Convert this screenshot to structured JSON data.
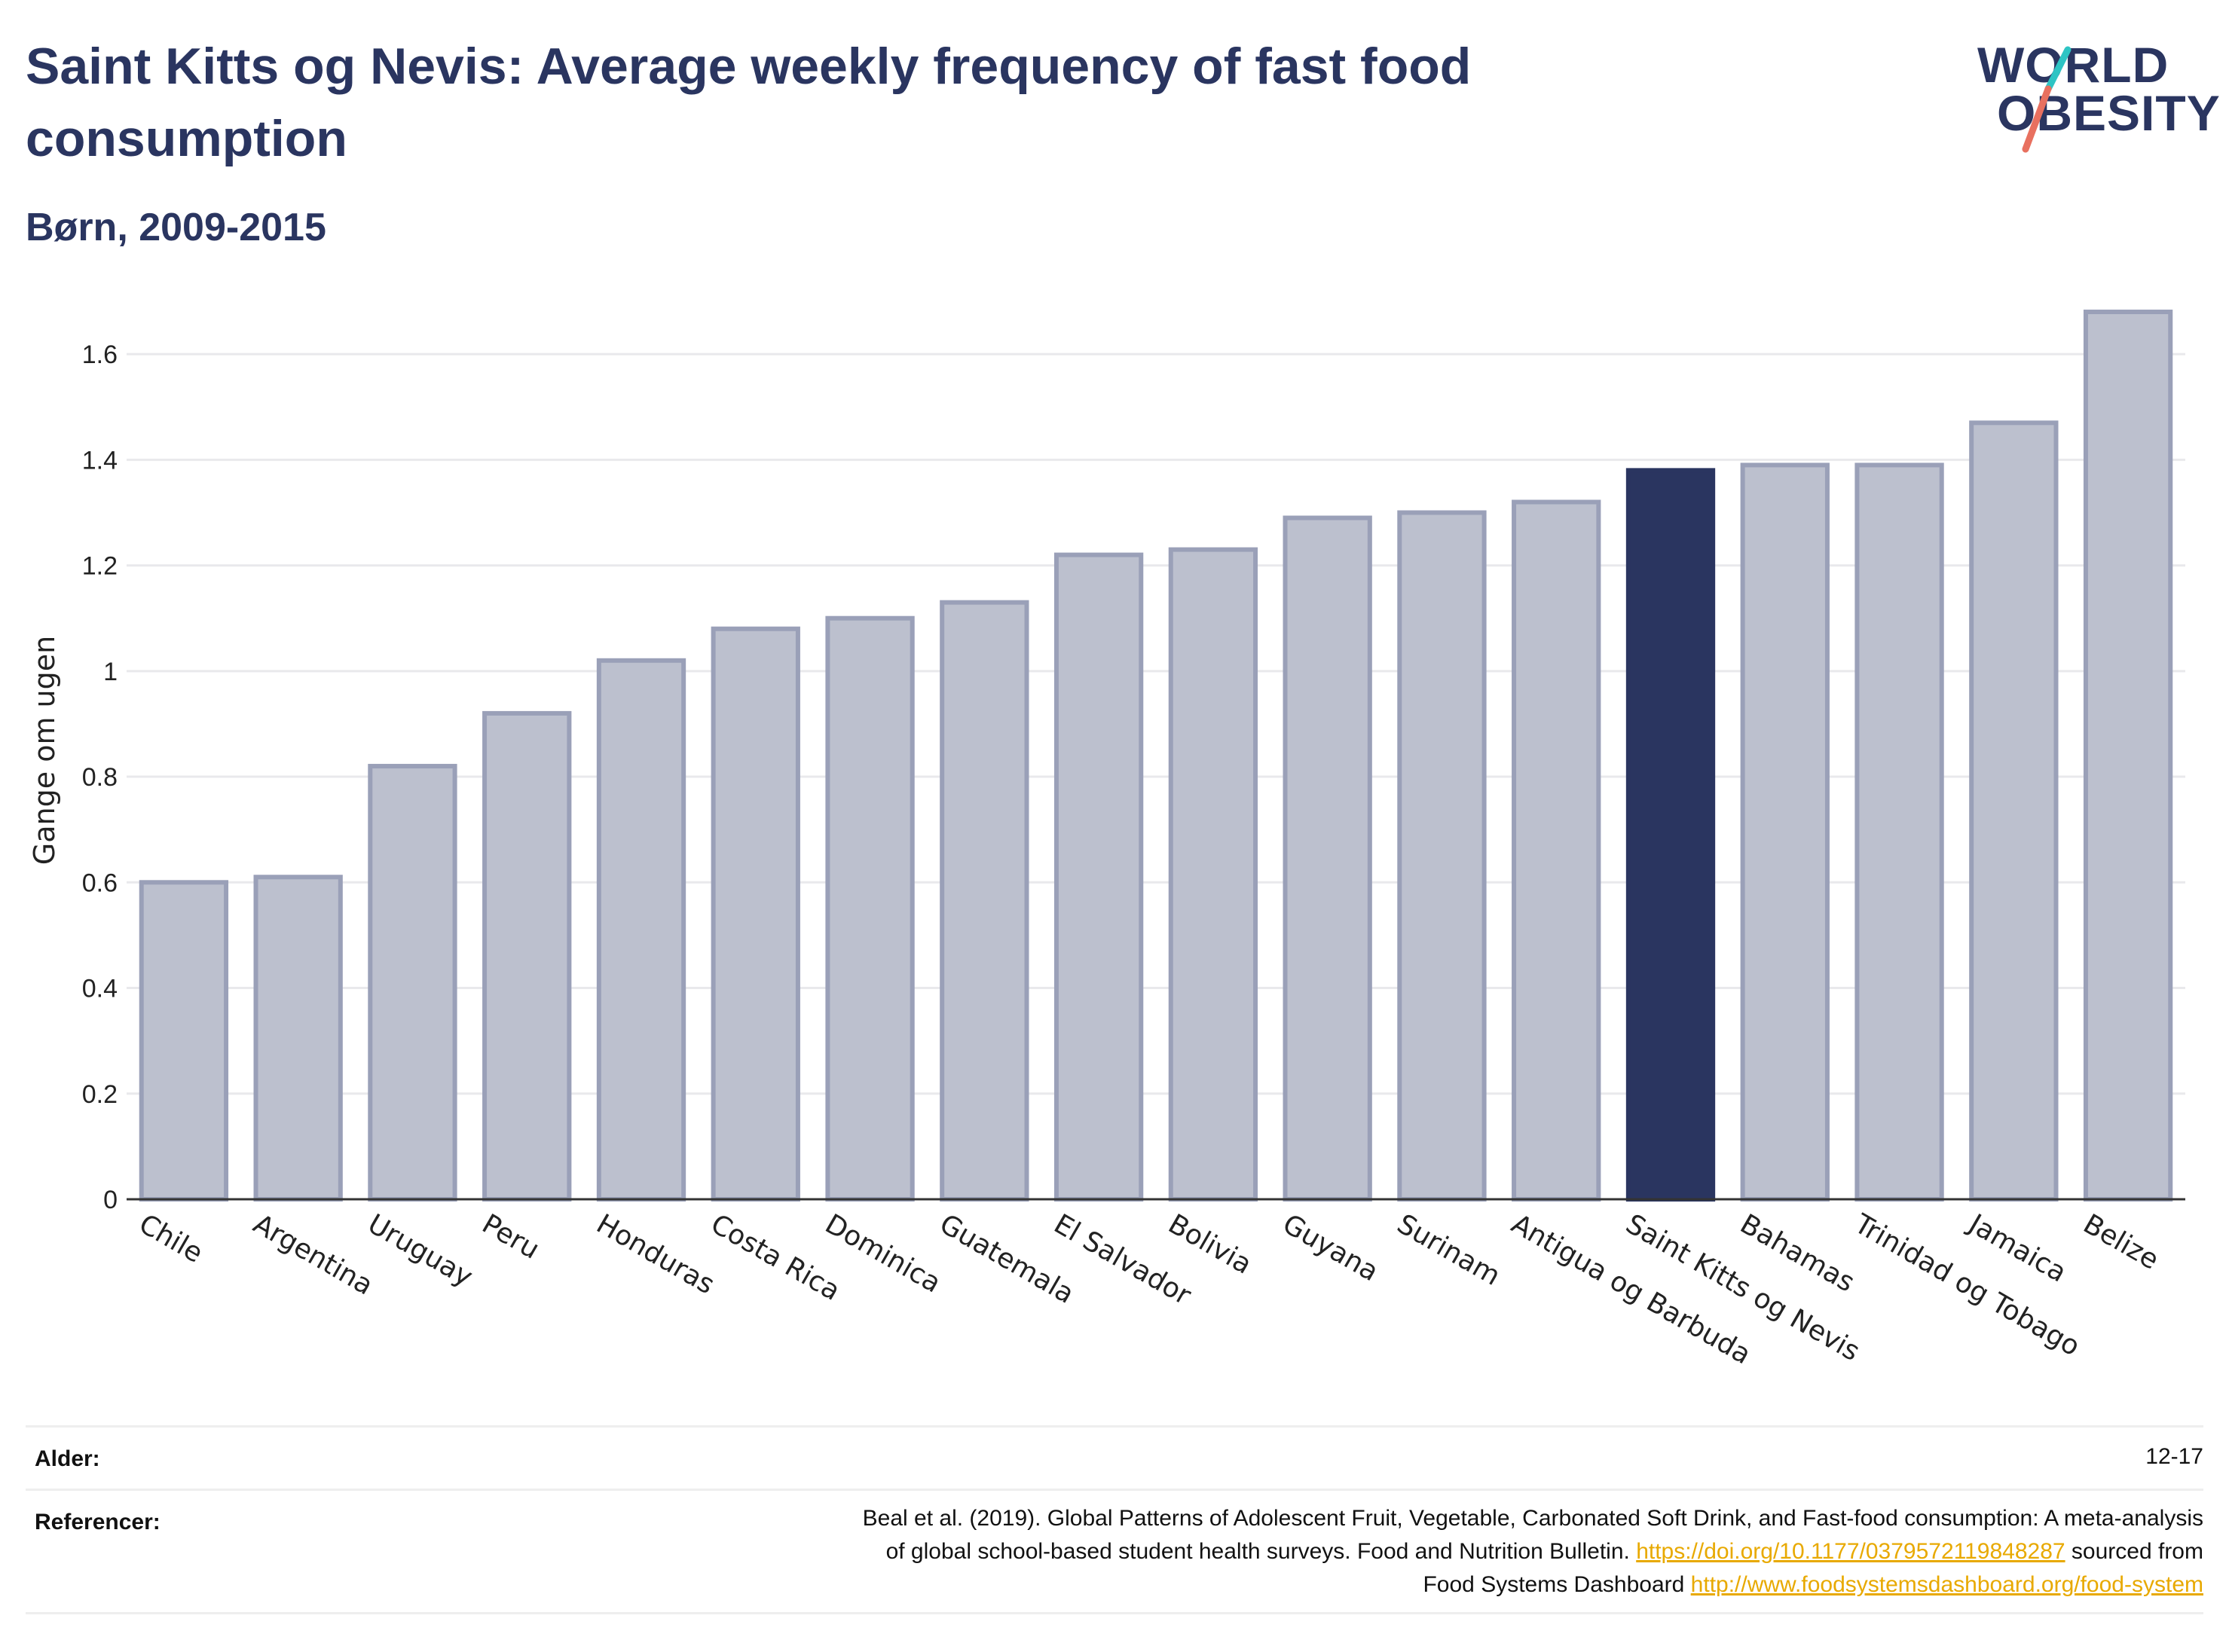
{
  "header": {
    "title": "Saint Kitts og Nevis: Average weekly frequency of fast food consumption",
    "subtitle": "Børn, 2009-2015"
  },
  "logo": {
    "line1": "WORLD",
    "line2": "OBESITY",
    "accent_colors": [
      "#2ec4c4",
      "#e8705f"
    ]
  },
  "chart_data": {
    "type": "bar",
    "title": "Saint Kitts og Nevis: Average weekly frequency of fast food consumption",
    "subtitle": "Børn, 2009-2015",
    "ylabel": "Gange om ugen",
    "xlabel": "",
    "ylim": [
      0,
      1.7
    ],
    "yticks": [
      0,
      0.2,
      0.4,
      0.6,
      0.8,
      1,
      1.2,
      1.4,
      1.6
    ],
    "ytick_labels": [
      "0",
      "0.2",
      "0.4",
      "0.6",
      "0.8",
      "1",
      "1.2",
      "1.4",
      "1.6"
    ],
    "grid": true,
    "highlight": "Saint Kitts og Nevis",
    "colors": {
      "bar": "#bcc0ce",
      "bar_border": "#9aa0b8",
      "highlight": "#2a3560"
    },
    "categories": [
      "Chile",
      "Argentina",
      "Uruguay",
      "Peru",
      "Honduras",
      "Costa Rica",
      "Dominica",
      "Guatemala",
      "El Salvador",
      "Bolivia",
      "Guyana",
      "Surinam",
      "Antigua og Barbuda",
      "Saint Kitts og Nevis",
      "Bahamas",
      "Trinidad og Tobago",
      "Jamaica",
      "Belize"
    ],
    "values": [
      0.6,
      0.61,
      0.82,
      0.92,
      1.02,
      1.08,
      1.1,
      1.13,
      1.22,
      1.23,
      1.29,
      1.3,
      1.32,
      1.38,
      1.39,
      1.39,
      1.47,
      1.68
    ]
  },
  "meta": {
    "age_label": "Alder:",
    "age_value": "12-17",
    "refs_label": "Referencer:",
    "refs_text_1": "Beal et al. (2019). Global Patterns of Adolescent Fruit, Vegetable, Carbonated Soft Drink, and Fast-food consumption: A meta-analysis",
    "refs_text_2": "of global school-based student health surveys. Food and Nutrition Bulletin.",
    "refs_link_1": "https://doi.org/10.1177/0379572119848287",
    "refs_text_3": "sourced from",
    "refs_text_4": "Food Systems Dashboard",
    "refs_link_2": "http://www.foodsystemsdashboard.org/food-system"
  }
}
